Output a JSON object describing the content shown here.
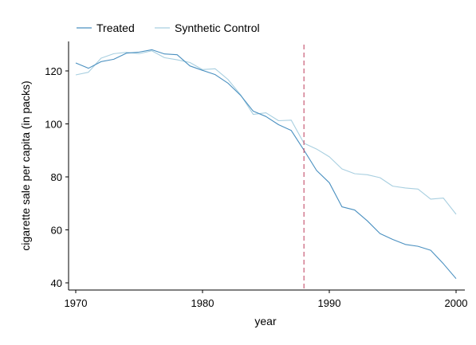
{
  "chart_data": {
    "type": "line",
    "xlabel": "year",
    "ylabel": "cigarette sale per capita (in packs)",
    "xlim": [
      1970,
      2000
    ],
    "ylim": [
      38,
      131
    ],
    "xticks": [
      1970,
      1980,
      1990,
      2000
    ],
    "yticks": [
      40,
      60,
      80,
      100,
      120
    ],
    "grid": false,
    "legend_position": "top-left",
    "reference_line": {
      "x": 1988,
      "style": "dashed",
      "color": "#c44e6a"
    },
    "x": [
      1970,
      1971,
      1972,
      1973,
      1974,
      1975,
      1976,
      1977,
      1978,
      1979,
      1980,
      1981,
      1982,
      1983,
      1984,
      1985,
      1986,
      1987,
      1988,
      1989,
      1990,
      1991,
      1992,
      1993,
      1994,
      1995,
      1996,
      1997,
      1998,
      1999,
      2000
    ],
    "series": [
      {
        "name": "Treated",
        "color": "#4a90c0",
        "values": [
          123.0,
          121.0,
          123.5,
          124.4,
          126.7,
          127.1,
          128.0,
          126.4,
          126.1,
          121.9,
          120.2,
          118.6,
          115.4,
          110.8,
          104.8,
          102.8,
          99.7,
          97.5,
          90.1,
          82.4,
          77.8,
          68.7,
          67.5,
          63.4,
          58.6,
          56.4,
          54.5,
          53.8,
          52.3,
          47.2,
          41.6
        ]
      },
      {
        "name": "Synthetic Control",
        "color": "#a8cfe0",
        "values": [
          118.5,
          119.5,
          124.8,
          126.5,
          127.0,
          126.5,
          127.6,
          125.0,
          124.2,
          123.2,
          120.5,
          120.8,
          116.8,
          111.0,
          103.6,
          104.2,
          101.2,
          101.4,
          92.7,
          90.5,
          87.6,
          83.0,
          81.2,
          80.8,
          79.7,
          76.5,
          75.8,
          75.4,
          71.6,
          72.0,
          65.9
        ]
      }
    ]
  }
}
